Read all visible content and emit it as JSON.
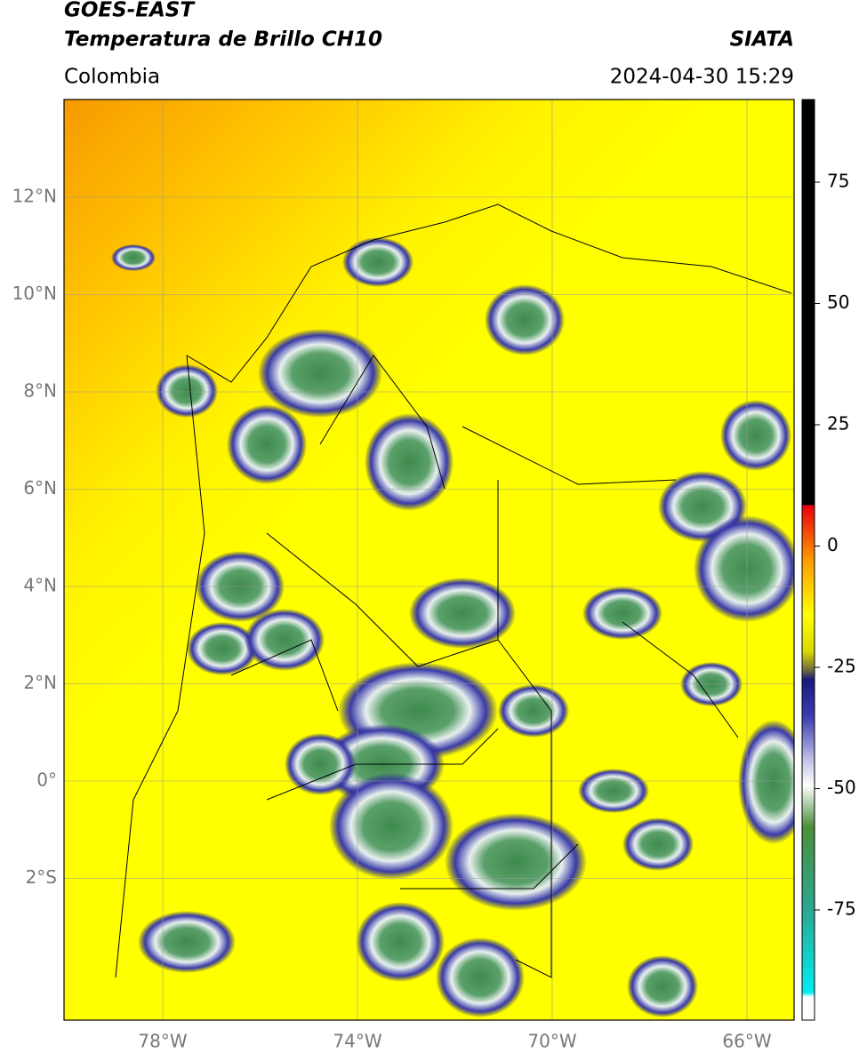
{
  "header": {
    "title": "GOES-EAST",
    "product": "Temperatura de Brillo CH10",
    "agency": "SIATA",
    "region": "Colombia",
    "datetime": "2024-04-30 15:29"
  },
  "map": {
    "lat_ticks": [
      "12°N",
      "10°N",
      "8°N",
      "6°N",
      "4°N",
      "2°N",
      "0°",
      "2°S"
    ],
    "lon_ticks": [
      "78°W",
      "74°W",
      "70°W",
      "66°W"
    ]
  },
  "colorbar": {
    "ticks": [
      "75",
      "50",
      "25",
      "0",
      "-25",
      "-50",
      "-75"
    ]
  }
}
